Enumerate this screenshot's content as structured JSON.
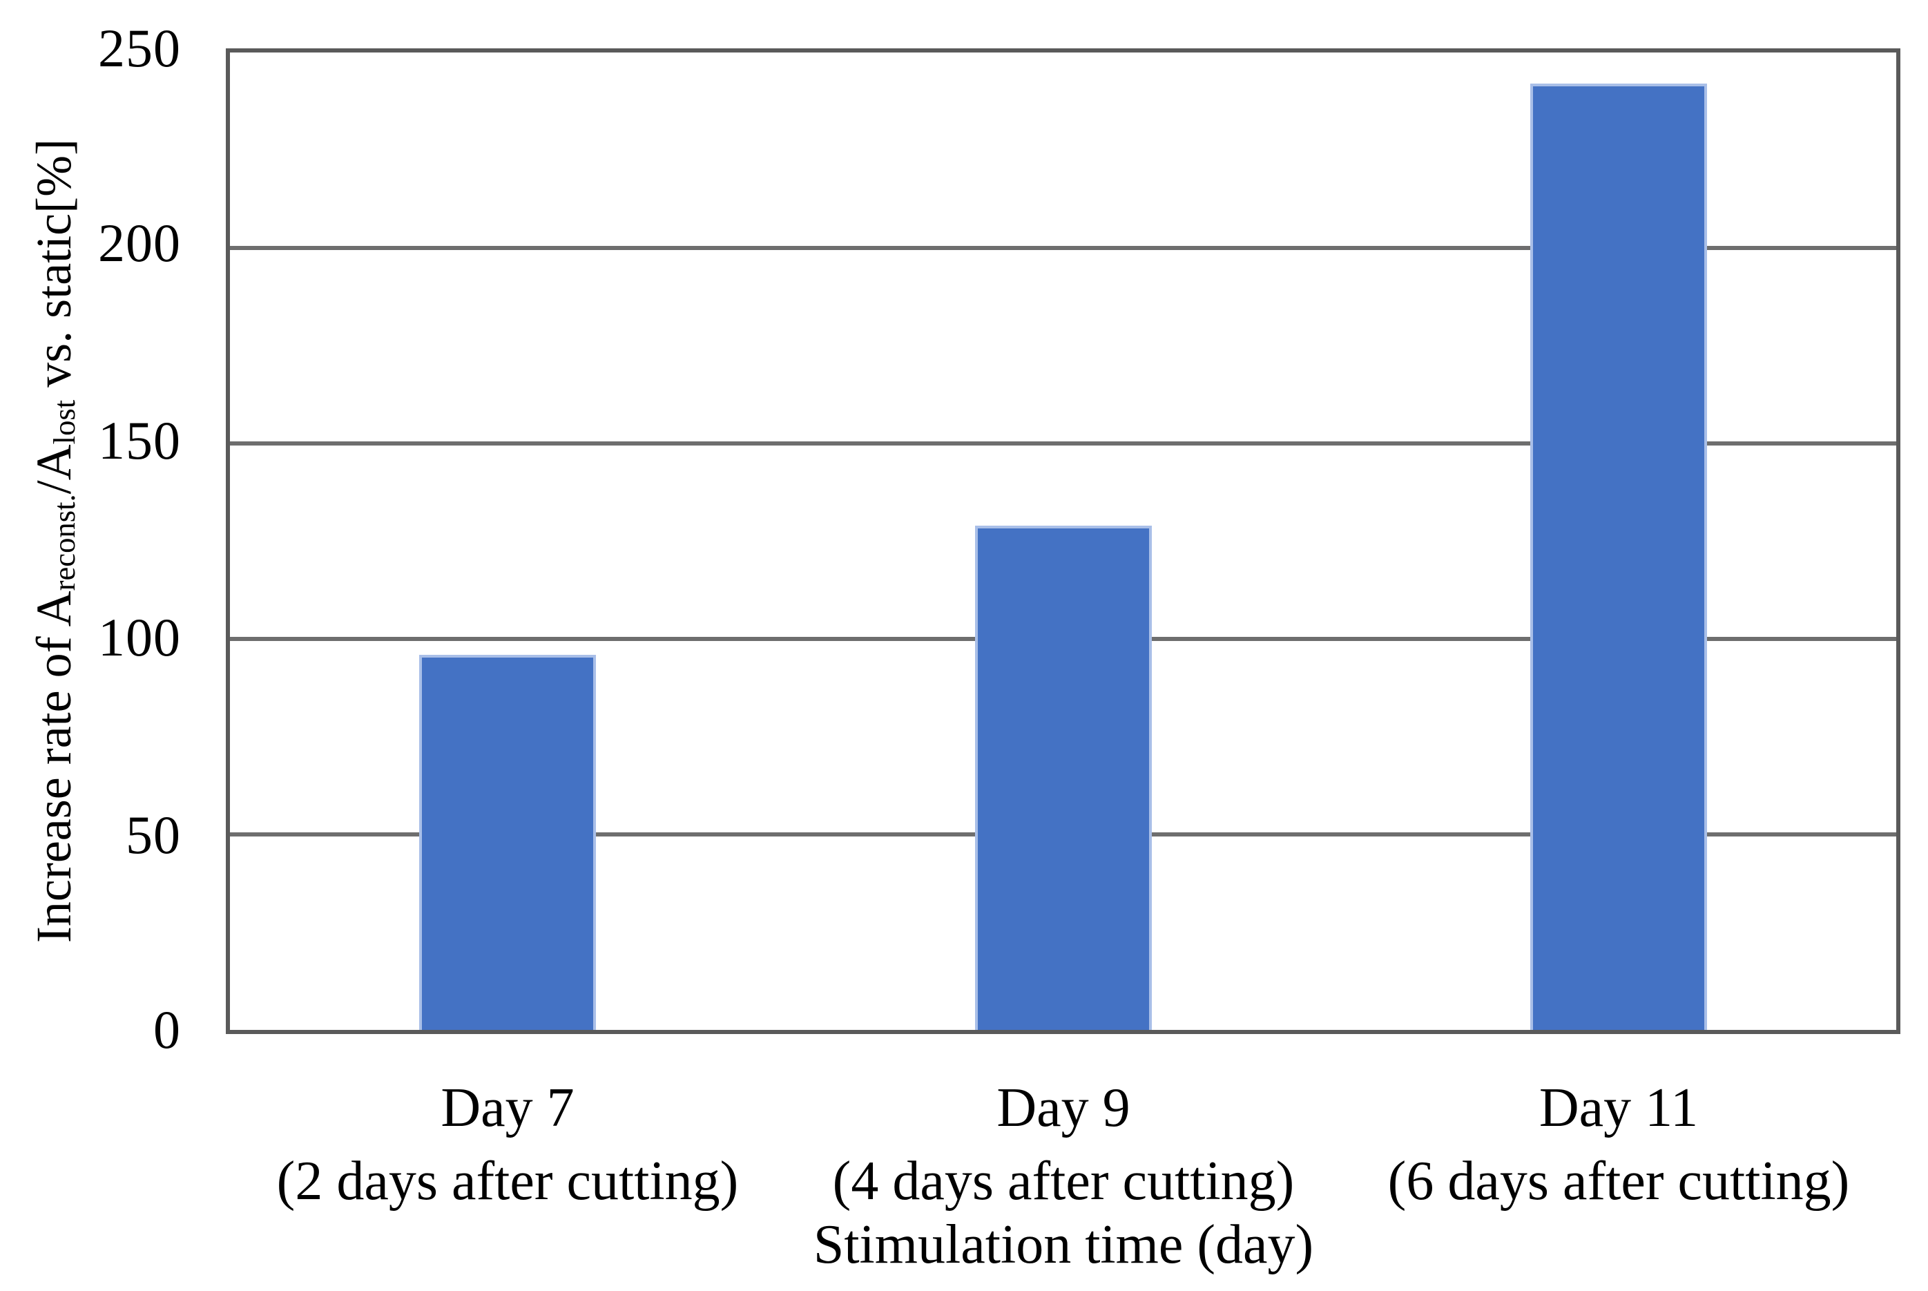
{
  "chart_data": {
    "type": "bar",
    "title": "",
    "categories": [
      "Day 7",
      "Day 9",
      "Day 11"
    ],
    "category_sublabels": [
      "(2 days after cutting)",
      "(4 days after cutting)",
      "(6 days after cutting)"
    ],
    "values": [
      96,
      129,
      242
    ],
    "xlabel": "Stimulation time (day)",
    "ylabel_plain": "Increase rate of Areconst./Alost vs. static[%]",
    "ylabel": {
      "prefix": "Increase rate of A",
      "sub1": "reconst.",
      "mid": "/A",
      "sub2": "lost",
      "suffix": " vs. static[%]"
    },
    "ylim": [
      0,
      250
    ],
    "ytick_interval": 50,
    "ytick_labels": [
      "250",
      "200",
      "150",
      "100",
      "50",
      "0"
    ],
    "grid": "horizontal",
    "legend": "none",
    "colors": {
      "bar_fill": "#4472C4",
      "bar_edge": "#A9BFE8",
      "axis": "#5A5A5A",
      "gridline": "#6E6E6E",
      "text": "#000000",
      "background": "#FFFFFF"
    }
  }
}
